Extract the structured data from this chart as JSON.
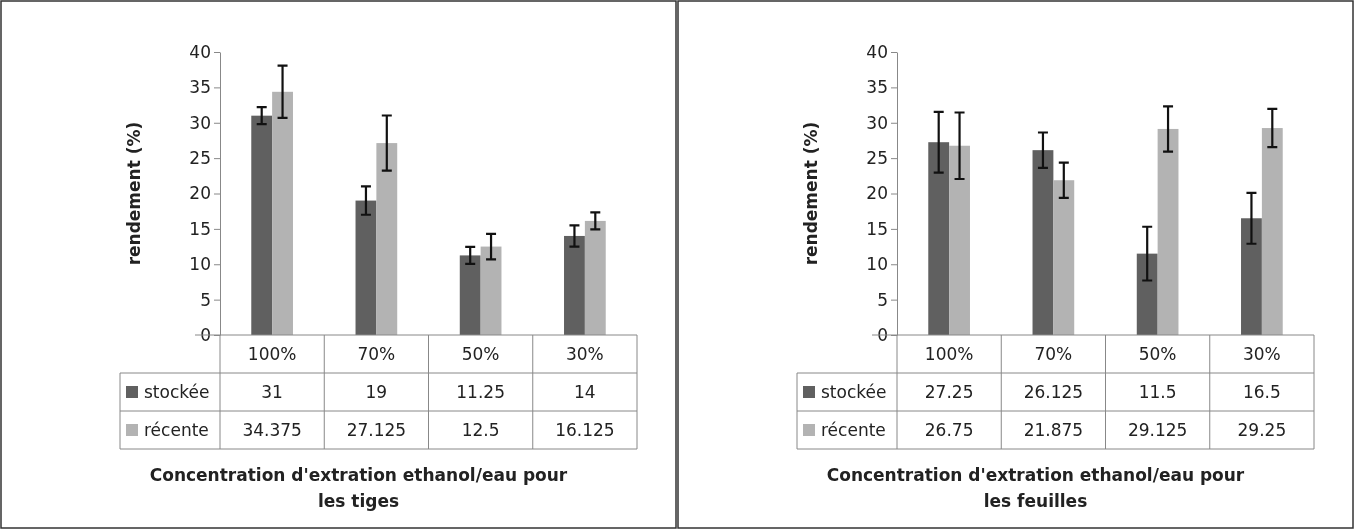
{
  "chart_data": [
    {
      "type": "bar",
      "xlabel": "Concentration d'extration ethanol/eau pour les tiges",
      "ylabel": "rendement (%)",
      "categories": [
        "100%",
        "70%",
        "50%",
        "30%"
      ],
      "series": [
        {
          "name": "stockée",
          "color": "#606060",
          "values": [
            31,
            19,
            11.25,
            14
          ],
          "errors": [
            1.2,
            2,
            1.2,
            1.5
          ]
        },
        {
          "name": "récente",
          "color": "#b3b3b3",
          "values": [
            34.375,
            27.125,
            12.5,
            16.125
          ],
          "errors": [
            3.7,
            3.9,
            1.8,
            1.2
          ]
        }
      ],
      "ylim": [
        0,
        40
      ],
      "yticks": [
        0,
        5,
        10,
        15,
        20,
        25,
        30,
        35,
        40
      ],
      "grid": false,
      "legend": "bottom",
      "data_labels": true
    },
    {
      "type": "bar",
      "xlabel": "Concentration d'extration ethanol/eau pour les feuilles",
      "ylabel": "rendement (%)",
      "categories": [
        "100%",
        "70%",
        "50%",
        "30%"
      ],
      "series": [
        {
          "name": "stockée",
          "color": "#606060",
          "values": [
            27.25,
            26.125,
            11.5,
            16.5
          ],
          "errors": [
            4.3,
            2.5,
            3.8,
            3.6
          ]
        },
        {
          "name": "récente",
          "color": "#b3b3b3",
          "values": [
            26.75,
            21.875,
            29.125,
            29.25
          ],
          "errors": [
            4.7,
            2.5,
            3.2,
            2.7
          ]
        }
      ],
      "ylim": [
        0,
        40
      ],
      "yticks": [
        0,
        5,
        10,
        15,
        20,
        25,
        30,
        35,
        40
      ],
      "grid": false,
      "legend": "bottom",
      "data_labels": true
    }
  ]
}
